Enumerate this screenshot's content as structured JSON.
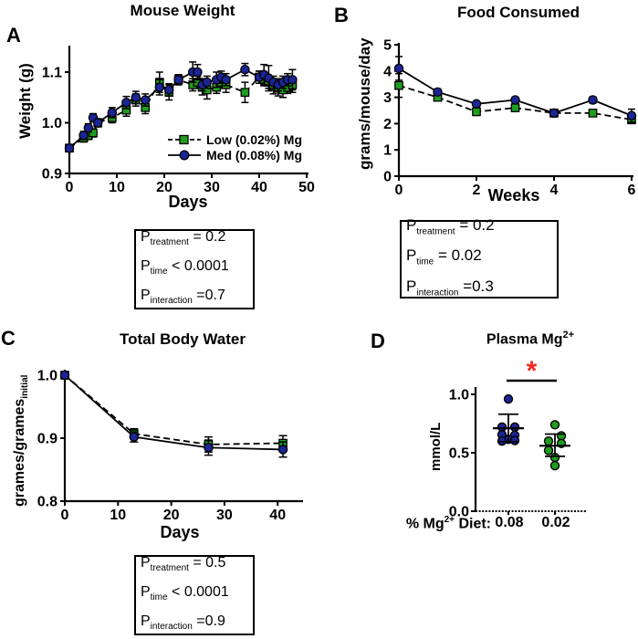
{
  "colors": {
    "low": "#1f9e1f",
    "med": "#1b2596",
    "asterisk": "#f42a1d",
    "axis": "#000000"
  },
  "pboxes": {
    "A": {
      "rows": [
        {
          "pre": "P",
          "sub": "treatment",
          "val": " = 0.2"
        },
        {
          "pre": "P",
          "sub": "time",
          "val": " < 0.0001"
        },
        {
          "pre": "P",
          "sub": "interaction",
          "val": " =0.7"
        }
      ]
    },
    "B": {
      "rows": [
        {
          "pre": "P",
          "sub": "treatment",
          "val": " = 0.2"
        },
        {
          "pre": "P",
          "sub": "time",
          "val": " = 0.02"
        },
        {
          "pre": "P",
          "sub": "interaction",
          "val": " =0.3"
        }
      ]
    },
    "C": {
      "rows": [
        {
          "pre": "P",
          "sub": "treatment",
          "val": " = 0.5"
        },
        {
          "pre": "P",
          "sub": "time",
          "val": " < 0.0001"
        },
        {
          "pre": "P",
          "sub": "interaction",
          "val": " =0.9"
        }
      ]
    }
  },
  "chart_data": [
    {
      "id": "A",
      "panel_label": "A",
      "type": "line",
      "title": "Mouse Weight",
      "xlabel": "Days",
      "ylabel": "Weight (g)",
      "xlim": [
        0,
        50
      ],
      "ylim": [
        0.9,
        1.15
      ],
      "xticks": [
        0,
        10,
        20,
        30,
        40,
        50
      ],
      "yticks": [
        "0.9",
        "1.0",
        "1.1"
      ],
      "legend_position": "bottom-right",
      "series": [
        {
          "name": "Low (0.02%) Mg",
          "marker": "square",
          "color_key": "low",
          "line": "dashed",
          "x": [
            0,
            3,
            4,
            5,
            6,
            9,
            12,
            14,
            16,
            19,
            21,
            23,
            26,
            27,
            28,
            29,
            31,
            32,
            33,
            37,
            40,
            41,
            42,
            43,
            44,
            45,
            46,
            47
          ],
          "y": [
            0.95,
            0.97,
            0.975,
            0.98,
            1.0,
            1.01,
            1.025,
            1.045,
            1.03,
            1.08,
            1.06,
            1.085,
            1.075,
            1.08,
            1.07,
            1.065,
            1.07,
            1.08,
            1.075,
            1.06,
            1.09,
            1.085,
            1.08,
            1.072,
            1.068,
            1.065,
            1.07,
            1.075
          ],
          "err": [
            0.005,
            0.008,
            0.008,
            0.008,
            0.008,
            0.01,
            0.012,
            0.012,
            0.012,
            0.02,
            0.015,
            0.01,
            0.012,
            0.012,
            0.015,
            0.018,
            0.012,
            0.012,
            0.015,
            0.02,
            0.012,
            0.012,
            0.012,
            0.015,
            0.015,
            0.015,
            0.012,
            0.015
          ]
        },
        {
          "name": "Med (0.08%) Mg",
          "marker": "circle",
          "color_key": "med",
          "line": "solid",
          "x": [
            0,
            3,
            4,
            5,
            6,
            9,
            12,
            14,
            16,
            19,
            21,
            23,
            26,
            27,
            28,
            29,
            31,
            32,
            33,
            37,
            40,
            41,
            42,
            43,
            44,
            45,
            46,
            47
          ],
          "y": [
            0.95,
            0.975,
            0.99,
            1.01,
            1.0,
            1.02,
            1.04,
            1.05,
            1.045,
            1.07,
            1.065,
            1.085,
            1.1,
            1.1,
            1.075,
            1.08,
            1.085,
            1.09,
            1.085,
            1.105,
            1.09,
            1.095,
            1.088,
            1.08,
            1.075,
            1.08,
            1.085,
            1.085
          ],
          "err": [
            0.005,
            0.008,
            0.008,
            0.008,
            0.008,
            0.01,
            0.012,
            0.012,
            0.012,
            0.015,
            0.012,
            0.01,
            0.02,
            0.015,
            0.012,
            0.012,
            0.015,
            0.012,
            0.012,
            0.012,
            0.012,
            0.02,
            0.025,
            0.012,
            0.012,
            0.012,
            0.012,
            0.02
          ]
        }
      ]
    },
    {
      "id": "B",
      "panel_label": "B",
      "type": "line",
      "title": "Food Consumed",
      "xlabel": "Weeks",
      "ylabel": "grams/mouse/day",
      "xlim": [
        0,
        6
      ],
      "ylim": [
        0,
        5
      ],
      "xticks": [
        0,
        2,
        4,
        6
      ],
      "yticks": [
        "0",
        "1",
        "2",
        "3",
        "4",
        "5"
      ],
      "series": [
        {
          "name": "Low (0.02%) Mg",
          "marker": "square",
          "color_key": "low",
          "line": "dashed",
          "x": [
            0,
            1,
            2,
            3,
            4,
            5,
            6
          ],
          "y": [
            3.45,
            3.0,
            2.45,
            2.6,
            2.4,
            2.4,
            2.15
          ],
          "err": [
            0.45,
            0.12,
            0.1,
            0.1,
            0.08,
            0.08,
            0.15
          ]
        },
        {
          "name": "Med (0.08%) Mg",
          "marker": "circle",
          "color_key": "med",
          "line": "solid",
          "x": [
            0,
            1,
            2,
            3,
            4,
            5,
            6
          ],
          "y": [
            4.1,
            3.2,
            2.75,
            2.9,
            2.4,
            2.9,
            2.3
          ],
          "err": [
            0.45,
            0.12,
            0.1,
            0.1,
            0.08,
            0.12,
            0.25
          ]
        }
      ]
    },
    {
      "id": "C",
      "panel_label": "C",
      "type": "line",
      "title": "Total Body Water",
      "xlabel": "Days",
      "ylabel_pre": "grames/grames",
      "ylabel_sub": "initial",
      "xlim": [
        0,
        44
      ],
      "ylim": [
        0.8,
        1.01
      ],
      "xticks": [
        0,
        10,
        20,
        30,
        40
      ],
      "yticks": [
        "0.8",
        "0.9",
        "1.0"
      ],
      "series": [
        {
          "name": "Low (0.02%) Mg",
          "marker": "square",
          "color_key": "low",
          "line": "dashed",
          "x": [
            0,
            13,
            27,
            41
          ],
          "y": [
            1.0,
            0.907,
            0.89,
            0.892
          ],
          "err": [
            0,
            0.008,
            0.012,
            0.012
          ]
        },
        {
          "name": "Med (0.08%) Mg",
          "marker": "circle",
          "color_key": "med",
          "line": "solid",
          "x": [
            0,
            13,
            27,
            41
          ],
          "y": [
            1.0,
            0.902,
            0.885,
            0.882
          ],
          "err": [
            0,
            0.008,
            0.012,
            0.012
          ]
        }
      ]
    },
    {
      "id": "D",
      "panel_label": "D",
      "type": "scatter",
      "title_pre": "Plasma Mg",
      "title_sup": "2+",
      "ylabel": "mmol/L",
      "ylim": [
        0,
        1.0
      ],
      "yticks": [
        "0.0",
        "0.5",
        "1.0"
      ],
      "xaxis_prefix_pre": "% Mg",
      "xaxis_prefix_sup": "2+",
      "xaxis_prefix_post": " Diet:",
      "significance": "*",
      "groups": [
        {
          "tick": "0.08",
          "color_key": "med",
          "mean": 0.71,
          "err_low": 0.595,
          "err_high": 0.83,
          "points": [
            [
              0,
              0.96
            ],
            [
              -7,
              0.72
            ],
            [
              7,
              0.72
            ],
            [
              -7,
              0.655
            ],
            [
              7,
              0.65
            ],
            [
              0,
              0.615
            ],
            [
              -7,
              0.6
            ],
            [
              7,
              0.605
            ]
          ]
        },
        {
          "tick": "0.02",
          "color_key": "low",
          "mean": 0.56,
          "err_low": 0.47,
          "err_high": 0.66,
          "points": [
            [
              0,
              0.74
            ],
            [
              7,
              0.645
            ],
            [
              -7,
              0.6
            ],
            [
              7,
              0.58
            ],
            [
              -7,
              0.52
            ],
            [
              0,
              0.46
            ],
            [
              0,
              0.39
            ]
          ]
        }
      ]
    }
  ]
}
